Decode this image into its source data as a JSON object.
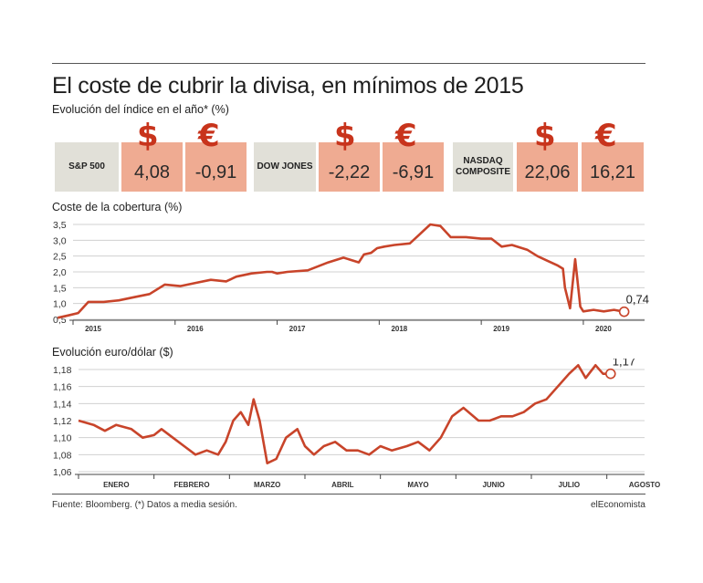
{
  "header": {
    "title": "El coste de cubrir la divisa, en mínimos de 2015",
    "subtitle": "Evolución del índice en el año* (%)"
  },
  "indices": [
    {
      "name": "S&P 500",
      "usd": "4,08",
      "eur": "-0,91"
    },
    {
      "name": "DOW JONES",
      "usd": "-2,22",
      "eur": "-6,91"
    },
    {
      "name": "NASDAQ COMPOSITE",
      "usd": "22,06",
      "eur": "16,21"
    }
  ],
  "symbols": {
    "usd": "$",
    "eur": "€"
  },
  "colors": {
    "accent": "#c8341c",
    "line": "#c8442a",
    "value_box": "#efab92",
    "index_box": "#e1e0d8"
  },
  "footer": {
    "source": "Fuente: Bloomberg. (*) Datos a media sesión.",
    "brand": "elEconomista"
  },
  "chart_data": [
    {
      "type": "line",
      "title": "Coste de la cobertura (%)",
      "x_ticks": [
        "2015",
        "2016",
        "2017",
        "2018",
        "2019",
        "2020"
      ],
      "y_ticks": [
        "0,5",
        "1,0",
        "1,5",
        "2,0",
        "2,5",
        "3,0",
        "3,5"
      ],
      "ylim": [
        0.5,
        3.5
      ],
      "xlim": [
        2015.0,
        2020.6
      ],
      "grid": "horizontal",
      "end_label": "0,74",
      "series": [
        {
          "x": [
            2014.85,
            2014.95,
            2015.05,
            2015.15,
            2015.3,
            2015.45,
            2015.6,
            2015.75,
            2015.9,
            2016.05,
            2016.2,
            2016.35,
            2016.5,
            2016.6,
            2016.75,
            2016.9,
            2016.95,
            2017.0,
            2017.1,
            2017.3,
            2017.5,
            2017.65,
            2017.8,
            2017.85,
            2017.92,
            2017.98,
            2018.05,
            2018.15,
            2018.3,
            2018.4,
            2018.5,
            2018.6,
            2018.7,
            2018.85,
            2019.0,
            2019.1,
            2019.2,
            2019.3,
            2019.45,
            2019.55,
            2019.65,
            2019.75,
            2019.8,
            2019.82,
            2019.87,
            2019.92,
            2019.97,
            2020.0,
            2020.1,
            2020.2,
            2020.3,
            2020.4
          ],
          "y": [
            0.55,
            0.62,
            0.7,
            1.05,
            1.05,
            1.1,
            1.2,
            1.3,
            1.6,
            1.55,
            1.65,
            1.75,
            1.7,
            1.85,
            1.95,
            2.0,
            2.0,
            1.95,
            2.0,
            2.05,
            2.3,
            2.45,
            2.3,
            2.55,
            2.6,
            2.75,
            2.8,
            2.85,
            2.9,
            3.2,
            3.5,
            3.45,
            3.1,
            3.1,
            3.05,
            3.05,
            2.8,
            2.85,
            2.7,
            2.5,
            2.35,
            2.2,
            2.1,
            1.5,
            0.85,
            2.4,
            0.9,
            0.75,
            0.8,
            0.75,
            0.8,
            0.74
          ]
        }
      ]
    },
    {
      "type": "line",
      "title": "Evolución euro/dólar ($)",
      "x_ticks": [
        "ENERO",
        "FEBRERO",
        "MARZO",
        "ABRIL",
        "MAYO",
        "JUNIO",
        "JULIO",
        "AGOSTO"
      ],
      "y_ticks": [
        "1,06",
        "1,08",
        "1,10",
        "1,12",
        "1,14",
        "1,16",
        "1,18"
      ],
      "ylim": [
        1.06,
        1.18
      ],
      "xlim": [
        0,
        7.5
      ],
      "grid": "horizontal",
      "end_label": "1,17",
      "series": [
        {
          "x": [
            0,
            0.2,
            0.35,
            0.5,
            0.7,
            0.85,
            1.0,
            1.1,
            1.25,
            1.4,
            1.55,
            1.7,
            1.85,
            1.95,
            2.05,
            2.15,
            2.25,
            2.32,
            2.4,
            2.5,
            2.62,
            2.75,
            2.9,
            3.0,
            3.12,
            3.25,
            3.4,
            3.55,
            3.7,
            3.85,
            4.0,
            4.15,
            4.35,
            4.5,
            4.65,
            4.8,
            4.95,
            5.1,
            5.3,
            5.45,
            5.6,
            5.75,
            5.9,
            6.05,
            6.2,
            6.35,
            6.5,
            6.62,
            6.72,
            6.85,
            6.95,
            7.05
          ],
          "y": [
            1.12,
            1.115,
            1.108,
            1.115,
            1.11,
            1.1,
            1.103,
            1.11,
            1.1,
            1.09,
            1.08,
            1.085,
            1.08,
            1.095,
            1.12,
            1.13,
            1.115,
            1.145,
            1.12,
            1.07,
            1.075,
            1.1,
            1.11,
            1.09,
            1.08,
            1.09,
            1.095,
            1.085,
            1.085,
            1.08,
            1.09,
            1.085,
            1.09,
            1.095,
            1.085,
            1.1,
            1.125,
            1.135,
            1.12,
            1.12,
            1.125,
            1.125,
            1.13,
            1.14,
            1.145,
            1.16,
            1.175,
            1.185,
            1.17,
            1.185,
            1.175,
            1.175
          ]
        }
      ]
    }
  ]
}
